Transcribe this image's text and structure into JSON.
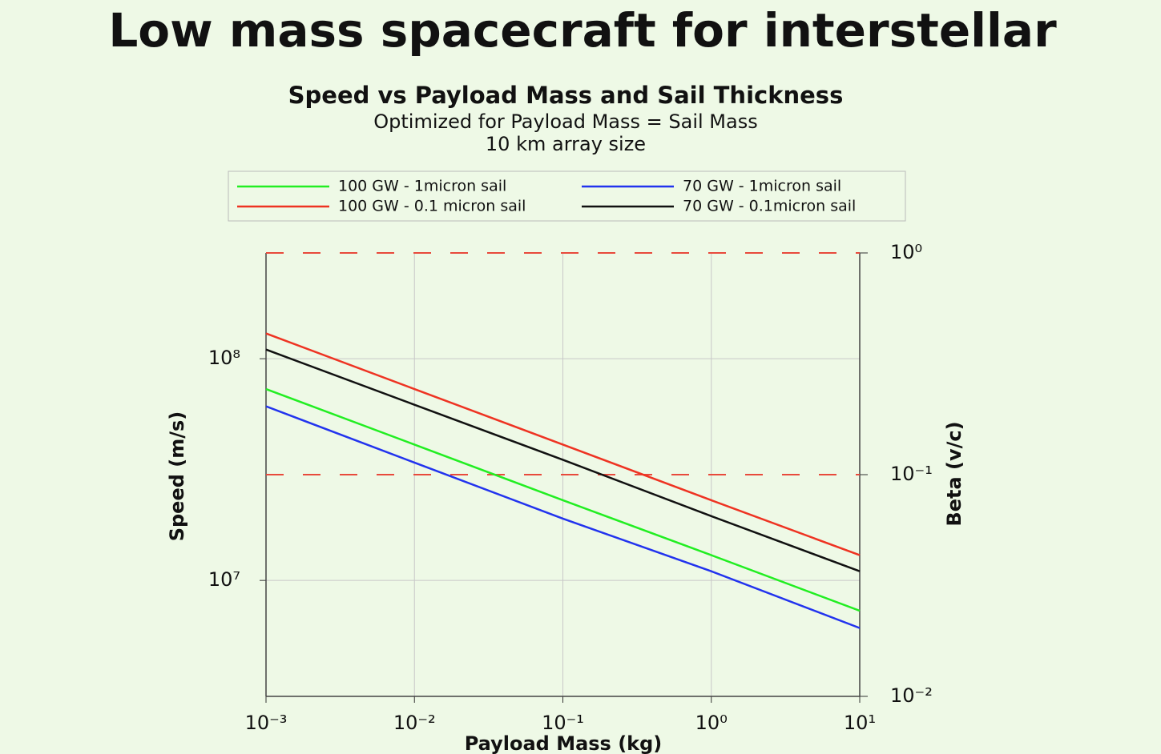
{
  "slide_title": "Low mass spacecraft for interstellar",
  "chart_data": {
    "type": "line",
    "title": "Speed vs Payload Mass and Sail Thickness",
    "subtitle": [
      "Optimized for Payload Mass = Sail Mass",
      "10 km array size"
    ],
    "xlabel": "Payload Mass (kg)",
    "ylabel": "Speed (m/s)",
    "y2label": "Beta (v/c)",
    "xscale": "log",
    "yscale": "log",
    "y2scale": "log",
    "grid": true,
    "xlim": [
      0.001,
      10
    ],
    "xticks": [
      {
        "value": 0.001,
        "label": "10⁻³"
      },
      {
        "value": 0.01,
        "label": "10⁻²"
      },
      {
        "value": 0.1,
        "label": "10⁻¹"
      },
      {
        "value": 1,
        "label": "10⁰"
      },
      {
        "value": 10,
        "label": "10¹"
      }
    ],
    "ylim": [
      3000000,
      300000000
    ],
    "yticks": [
      {
        "value": 10000000,
        "label": "10⁷"
      },
      {
        "value": 100000000,
        "label": "10⁸"
      }
    ],
    "y2lim": [
      0.01,
      1
    ],
    "y2ticks": [
      {
        "value": 0.01,
        "label": "10⁻²"
      },
      {
        "value": 0.1,
        "label": "10⁻¹"
      },
      {
        "value": 1,
        "label": "10⁰"
      }
    ],
    "x": [
      0.001,
      0.01,
      0.1,
      1,
      10
    ],
    "series": [
      {
        "name": "100 GW - 1micron sail",
        "color": "#22ee22",
        "values": [
          73000000,
          41000000,
          23000000,
          13000000,
          7300000
        ]
      },
      {
        "name": "100 GW - 0.1 micron sail",
        "color": "#ee3322",
        "values": [
          130000000,
          73000000,
          41000000,
          23000000,
          13000000
        ]
      },
      {
        "name": "70 GW - 1micron sail",
        "color": "#2233ee",
        "values": [
          61000000,
          34000000,
          19000000,
          11000000,
          6100000
        ]
      },
      {
        "name": "70 GW - 0.1micron sail",
        "color": "#111111",
        "values": [
          110000000,
          62000000,
          35000000,
          19500000,
          11000000
        ]
      }
    ],
    "reference_lines": {
      "axis": "y2",
      "values": [
        1,
        0.1
      ],
      "color": "#e84a3c"
    }
  }
}
